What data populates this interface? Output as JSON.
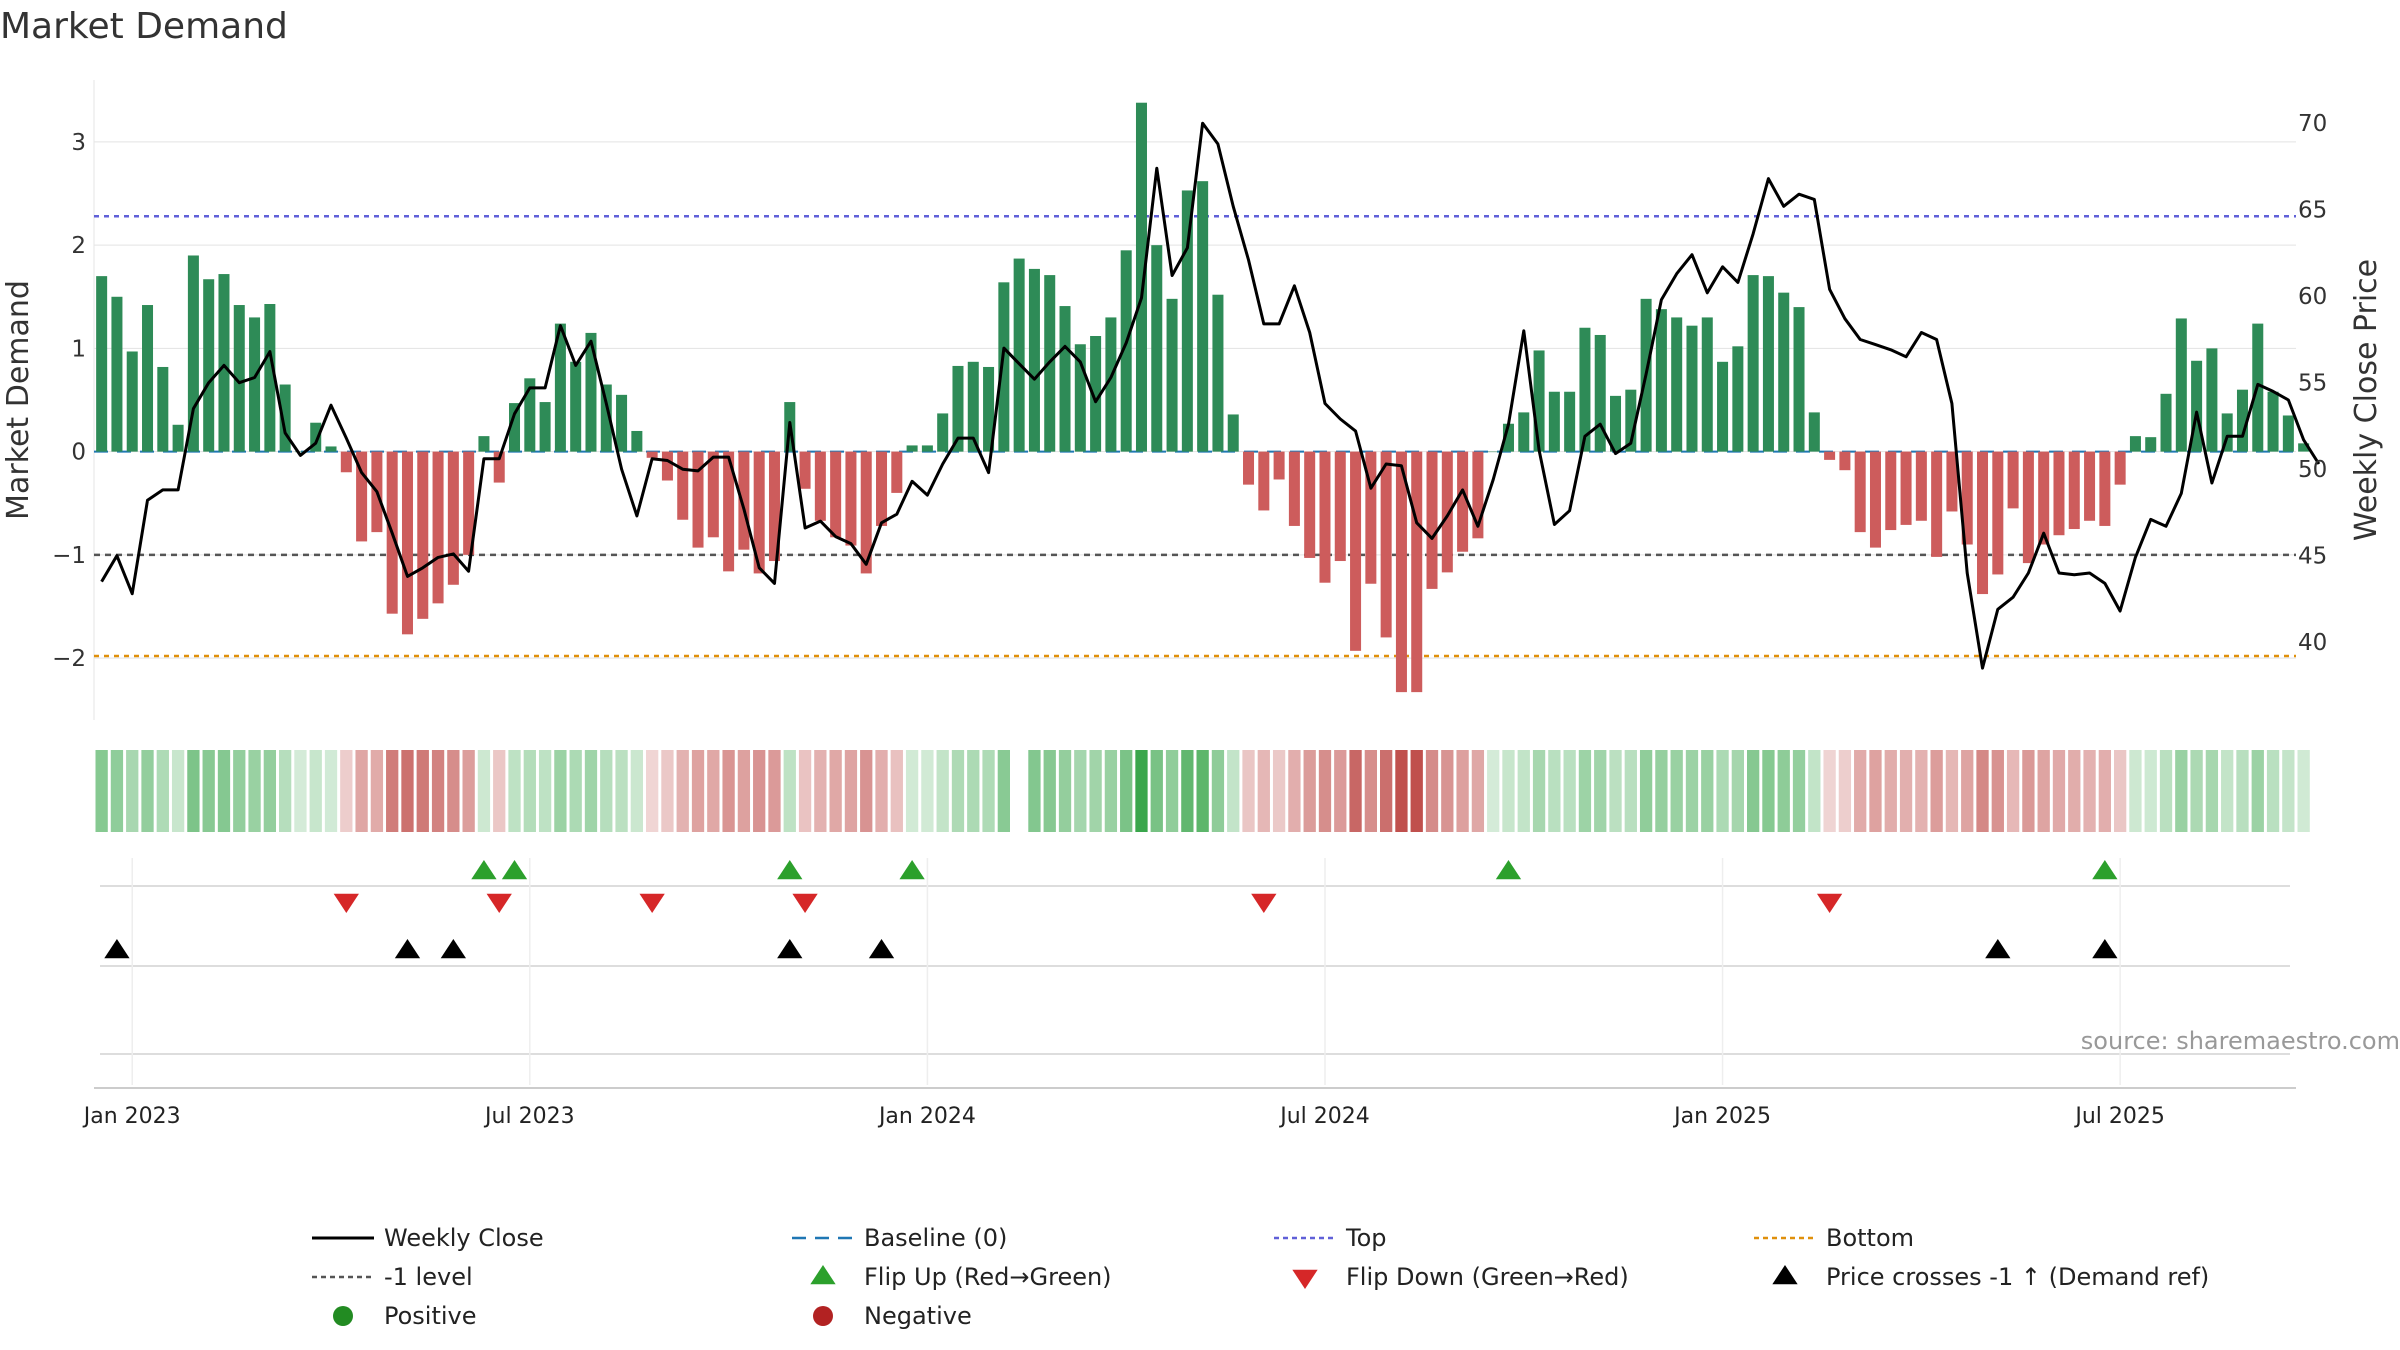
{
  "chart_data": {
    "type": "bar",
    "title": "Market Demand",
    "ylabel_left": "Market Demand",
    "ylabel_right": "Weekly Close Price",
    "left_ylim": [
      -2.6,
      3.6
    ],
    "right_ylim": [
      35.5,
      72.5
    ],
    "left_yticks": [
      {
        "v": 3,
        "label": "3"
      },
      {
        "v": 2,
        "label": "2"
      },
      {
        "v": 1,
        "label": "1"
      },
      {
        "v": 0,
        "label": "0"
      },
      {
        "v": -1,
        "label": "−1"
      },
      {
        "v": -2,
        "label": "−2"
      }
    ],
    "right_yticks": [
      {
        "v": 70,
        "label": "70"
      },
      {
        "v": 65,
        "label": "65"
      },
      {
        "v": 60,
        "label": "60"
      },
      {
        "v": 55,
        "label": "55"
      },
      {
        "v": 50,
        "label": "50"
      },
      {
        "v": 45,
        "label": "45"
      },
      {
        "v": 40,
        "label": "40"
      }
    ],
    "x_ticks": [
      {
        "week": 2,
        "label": "Jan 2023"
      },
      {
        "week": 28,
        "label": "Jul 2023"
      },
      {
        "week": 54,
        "label": "Jan 2024"
      },
      {
        "week": 80,
        "label": "Jul 2024"
      },
      {
        "week": 106,
        "label": "Jan 2025"
      },
      {
        "week": 132,
        "label": "Jul 2025"
      }
    ],
    "week_range": [
      -0.5,
      143.5
    ],
    "reference_lines": {
      "top": 2.28,
      "bottom": -1.98,
      "minus_one": -1,
      "baseline": 0
    },
    "demand": [
      1.7,
      1.5,
      0.97,
      1.42,
      0.82,
      0.26,
      1.9,
      1.67,
      1.72,
      1.42,
      1.3,
      1.43,
      0.65,
      0,
      0.28,
      0.05,
      -0.2,
      -0.87,
      -0.78,
      -1.57,
      -1.77,
      -1.62,
      -1.47,
      -1.29,
      -1.0,
      0.15,
      -0.3,
      0.47,
      0.71,
      0.48,
      1.24,
      0.87,
      1.15,
      0.65,
      0.55,
      0.2,
      -0.06,
      -0.28,
      -0.66,
      -0.93,
      -0.83,
      -1.16,
      -0.95,
      -1.18,
      -1.06,
      0.48,
      -0.36,
      -0.67,
      -0.83,
      -0.91,
      -1.18,
      -0.72,
      -0.4,
      0.06,
      0.06,
      0.37,
      0.83,
      0.87,
      0.82,
      1.64,
      1.87,
      1.77,
      1.71,
      1.41,
      1.04,
      1.12,
      1.3,
      1.95,
      3.38,
      2.0,
      1.48,
      2.53,
      2.62,
      1.52,
      0.36,
      -0.32,
      -0.57,
      -0.27,
      -0.72,
      -1.03,
      -1.27,
      -1.06,
      -1.93,
      -1.28,
      -1.8,
      -2.33,
      -2.33,
      -1.33,
      -1.17,
      -0.97,
      -0.84,
      0,
      0.27,
      0.38,
      0.98,
      0.58,
      0.58,
      1.2,
      1.13,
      0.54,
      0.6,
      1.48,
      1.38,
      1.3,
      1.22,
      1.3,
      0.87,
      1.02,
      1.71,
      1.7,
      1.54,
      1.4,
      0.38,
      -0.08,
      -0.18,
      -0.78,
      -0.93,
      -0.76,
      -0.71,
      -0.67,
      -1.02,
      -0.58,
      -0.9,
      -1.38,
      -1.19,
      -0.55,
      -1.08,
      -0.9,
      -0.81,
      -0.75,
      -0.67,
      -0.72,
      -0.32,
      0.15,
      0.14,
      0.56,
      1.29,
      0.88,
      1.0,
      0.37,
      0.6,
      1.24,
      0.58,
      0.35,
      0.08
    ],
    "weekly_close": [
      43.5,
      45.0,
      42.8,
      48.2,
      48.8,
      48.8,
      53.5,
      55.0,
      56.0,
      55.0,
      55.3,
      56.8,
      52.1,
      50.8,
      51.5,
      53.7,
      51.8,
      49.8,
      48.7,
      46.3,
      43.8,
      44.3,
      44.9,
      45.1,
      44.1,
      50.6,
      50.6,
      53.2,
      54.7,
      54.7,
      58.3,
      56.0,
      57.4,
      53.8,
      50.0,
      47.3,
      50.6,
      50.5,
      50.0,
      49.9,
      50.7,
      50.7,
      47.7,
      44.3,
      43.4,
      52.7,
      46.6,
      47.0,
      46.1,
      45.7,
      44.5,
      46.9,
      47.4,
      49.3,
      48.5,
      50.3,
      51.8,
      51.8,
      49.8,
      57.0,
      56.1,
      55.2,
      56.2,
      57.1,
      56.2,
      53.9,
      55.3,
      57.3,
      59.9,
      67.4,
      61.2,
      62.8,
      70.0,
      68.8,
      65.2,
      62.1,
      58.4,
      58.4,
      60.6,
      57.9,
      53.8,
      52.9,
      52.2,
      48.9,
      50.3,
      50.2,
      46.9,
      46.0,
      47.3,
      48.8,
      46.7,
      49.4,
      52.6,
      58.0,
      51.1,
      46.8,
      47.6,
      51.9,
      52.6,
      50.9,
      51.5,
      55.5,
      59.8,
      61.3,
      62.4,
      60.2,
      61.7,
      60.8,
      63.6,
      66.8,
      65.2,
      65.9,
      65.6,
      60.4,
      58.7,
      57.5,
      57.2,
      56.9,
      56.5,
      57.9,
      57.5,
      53.8,
      44.0,
      38.5,
      41.9,
      42.6,
      44.0,
      46.3,
      44.0,
      43.9,
      44.0,
      43.4,
      41.8,
      44.9,
      47.1,
      46.7,
      48.6,
      53.3,
      49.2,
      51.9,
      51.9,
      54.9,
      54.5,
      54.0,
      51.7,
      50.3
    ],
    "flips_up": [
      25,
      27,
      45,
      53,
      92,
      131
    ],
    "flips_down": [
      16,
      26,
      36,
      46,
      76,
      113
    ],
    "price_crosses_minus1_up": [
      1,
      20,
      23,
      45,
      51,
      124,
      131
    ],
    "legend": [
      {
        "label": "Weekly Close",
        "marker": "line-solid",
        "color": "#000000"
      },
      {
        "label": "Baseline (0)",
        "marker": "line-dashed",
        "color": "#1f77b4"
      },
      {
        "label": "Top",
        "marker": "line-dotted",
        "color": "#6060d8"
      },
      {
        "label": "Bottom",
        "marker": "line-dotted",
        "color": "#e0900b"
      },
      {
        "label": "-1 level",
        "marker": "line-dotted",
        "color": "#555555"
      },
      {
        "label": "Flip Up (Red→Green)",
        "marker": "triangle-up",
        "color": "#2ca02c"
      },
      {
        "label": "Flip Down (Green→Red)",
        "marker": "triangle-down",
        "color": "#d62728"
      },
      {
        "label": "Price crosses -1 ↑ (Demand ref)",
        "marker": "triangle-up",
        "color": "#000000"
      },
      {
        "label": "Positive",
        "marker": "circle",
        "color": "#228b22"
      },
      {
        "label": "Negative",
        "marker": "circle",
        "color": "#b22222"
      }
    ]
  },
  "colors": {
    "positive_bar": "#2e8b57",
    "negative_bar": "#cd5c5c",
    "heat_positive": "#3aa64c",
    "heat_negative": "#c0504d",
    "heat_gap": "#ffffff"
  },
  "heat_strip_gap_week": 60,
  "source_text": "source: sharemaestro.com"
}
